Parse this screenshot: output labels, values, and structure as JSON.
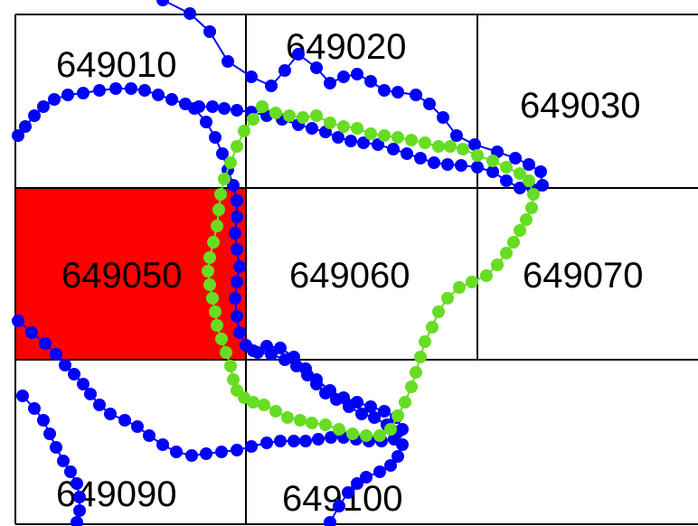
{
  "map": {
    "highlight_color": "#ff0000",
    "grid_line_color": "#000000",
    "cells": [
      {
        "id": "649010",
        "highlighted": false
      },
      {
        "id": "649020",
        "highlighted": false
      },
      {
        "id": "649030",
        "highlighted": false
      },
      {
        "id": "649050",
        "highlighted": true
      },
      {
        "id": "649060",
        "highlighted": false
      },
      {
        "id": "649070",
        "highlighted": false
      },
      {
        "id": "649090",
        "highlighted": false
      },
      {
        "id": "649100",
        "highlighted": false
      }
    ],
    "tracks": [
      {
        "color": "#0000ff",
        "marker": "circle"
      },
      {
        "color": "#66dd22",
        "marker": "circle"
      }
    ]
  }
}
